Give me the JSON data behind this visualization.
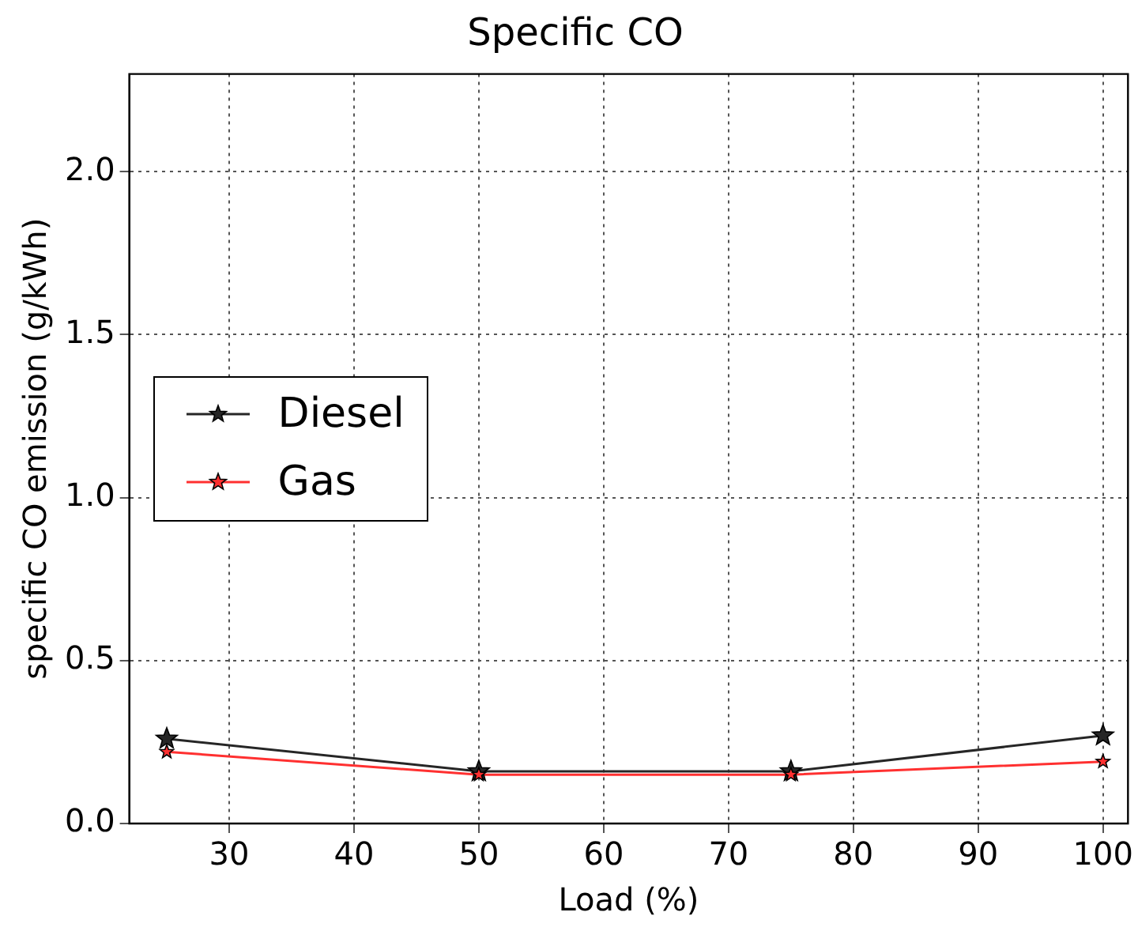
{
  "chart_data": {
    "type": "line",
    "title": "Specific CO",
    "xlabel": "Load (%)",
    "ylabel": "specific CO emission (g/kWh)",
    "x": [
      25,
      50,
      75,
      100
    ],
    "series": [
      {
        "name": "Diesel",
        "color": "#262626",
        "values": [
          0.26,
          0.16,
          0.16,
          0.27
        ]
      },
      {
        "name": "Gas",
        "color": "#ff3030",
        "values": [
          0.22,
          0.15,
          0.15,
          0.19
        ]
      }
    ],
    "xlim": [
      22,
      102
    ],
    "xticks": [
      30,
      40,
      50,
      60,
      70,
      80,
      90,
      100
    ],
    "ylim": [
      0,
      2.3
    ],
    "yticks": [
      {
        "value": 0,
        "label": "0.0"
      },
      {
        "value": 0.5,
        "label": "0.5"
      },
      {
        "value": 1,
        "label": "1.0"
      },
      {
        "value": 1.5,
        "label": "1.5"
      },
      {
        "value": 2,
        "label": "2.0"
      }
    ],
    "grid": true,
    "legend": "center left",
    "marker": "star",
    "line_style": "solid"
  }
}
